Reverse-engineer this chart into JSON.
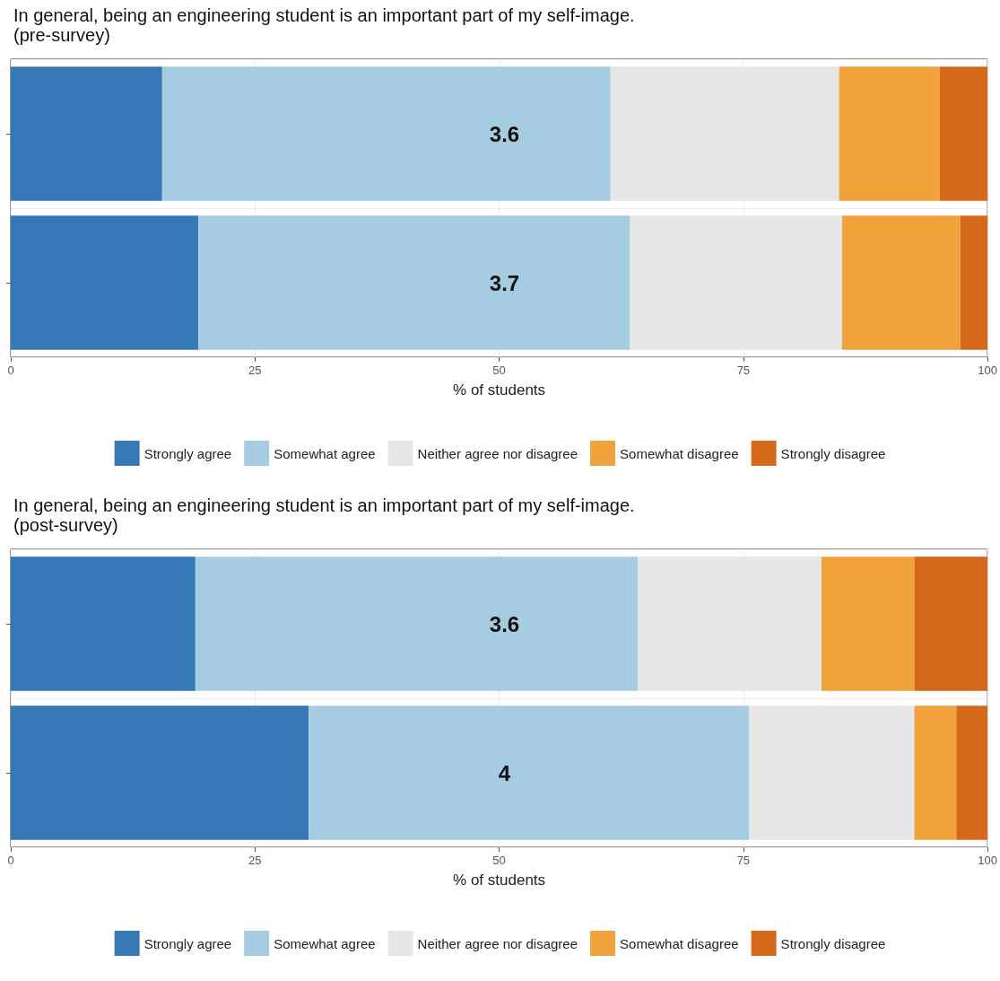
{
  "chart_data": [
    {
      "type": "bar",
      "orientation": "horizontal",
      "stacked": true,
      "title": "In general, being an engineering student is an important part of my self-image.",
      "subtitle": "(pre-survey)",
      "xlabel": "% of students",
      "categories": [
        null,
        null
      ],
      "series": [
        {
          "name": "Strongly agree",
          "color": "#3679b6",
          "values": [
            15.5,
            19.2
          ]
        },
        {
          "name": "Somewhat agree",
          "color": "#a6cce2",
          "values": [
            45.9,
            44.2
          ]
        },
        {
          "name": "Neither agree nor disagree",
          "color": "#e6e6e6",
          "values": [
            23.4,
            21.7
          ]
        },
        {
          "name": "Somewhat disagree",
          "color": "#f1a23a",
          "values": [
            10.3,
            12.1
          ]
        },
        {
          "name": "Strongly disagree",
          "color": "#d6681a",
          "values": [
            4.9,
            2.8
          ]
        }
      ],
      "xlim": [
        0,
        100
      ],
      "xticks": [
        0,
        25,
        50,
        75,
        100
      ],
      "grid": true,
      "legend": "bottom",
      "annotations": [
        "3.6",
        "3.7"
      ]
    },
    {
      "type": "bar",
      "orientation": "horizontal",
      "stacked": true,
      "title": "In general, being an engineering student is an important part of my self-image.",
      "subtitle": "(post-survey)",
      "xlabel": "% of students",
      "categories": [
        null,
        null
      ],
      "series": [
        {
          "name": "Strongly agree",
          "color": "#3679b6",
          "values": [
            18.9,
            30.5
          ]
        },
        {
          "name": "Somewhat agree",
          "color": "#a6cce2",
          "values": [
            45.3,
            45.1
          ]
        },
        {
          "name": "Neither agree nor disagree",
          "color": "#e6e6e6",
          "values": [
            18.8,
            16.9
          ]
        },
        {
          "name": "Somewhat disagree",
          "color": "#f1a23a",
          "values": [
            9.5,
            4.3
          ]
        },
        {
          "name": "Strongly disagree",
          "color": "#d6681a",
          "values": [
            7.5,
            3.2
          ]
        }
      ],
      "xlim": [
        0,
        100
      ],
      "xticks": [
        0,
        25,
        50,
        75,
        100
      ],
      "grid": true,
      "legend": "bottom",
      "annotations": [
        "3.6",
        "4"
      ]
    }
  ]
}
